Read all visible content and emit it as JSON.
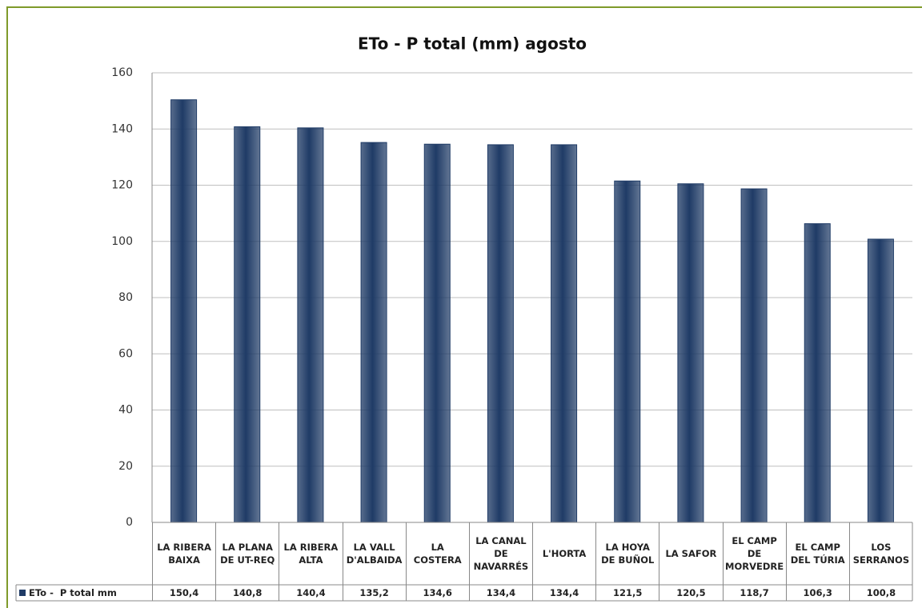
{
  "chart_data": {
    "type": "bar",
    "title": "ETo - P total (mm) agosto",
    "categories": [
      "LA RIBERA BAIXA",
      "LA PLANA DE UT-REQ",
      "LA RIBERA ALTA",
      "LA VALL D'ALBAIDA",
      "LA COSTERA",
      "LA CANAL DE NAVARRÉS",
      "L'HORTA",
      "LA HOYA DE BUÑOL",
      "LA SAFOR",
      "EL CAMP DE MORVEDRE",
      "EL CAMP DEL TÚRIA",
      "LOS SERRANOS"
    ],
    "series": [
      {
        "name": "ETo -  P total mm",
        "color": "#1f3b66",
        "values": [
          150.4,
          140.8,
          140.4,
          135.2,
          134.6,
          134.4,
          134.4,
          121.5,
          120.5,
          118.7,
          106.3,
          100.8
        ],
        "value_labels": [
          "150,4",
          "140,8",
          "140,4",
          "135,2",
          "134,6",
          "134,4",
          "134,4",
          "121,5",
          "120,5",
          "118,7",
          "106,3",
          "100,8"
        ]
      }
    ],
    "ylim": [
      0,
      160
    ],
    "yticks": [
      0,
      20,
      40,
      60,
      80,
      100,
      120,
      140,
      160
    ],
    "grid": true,
    "legend": "table"
  }
}
